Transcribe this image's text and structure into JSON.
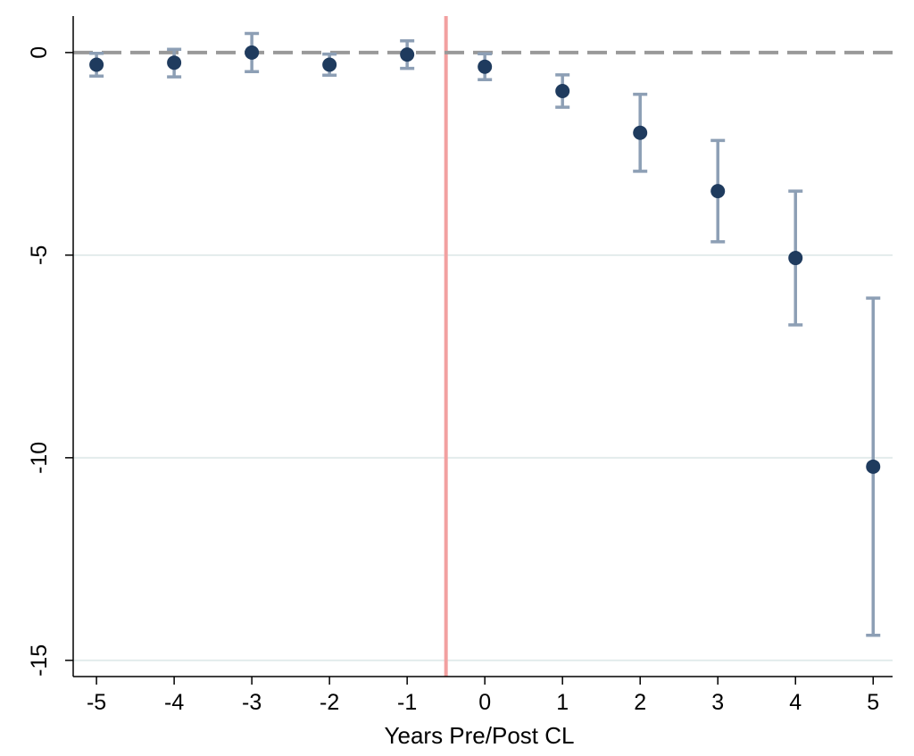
{
  "chart_data": {
    "type": "scatter",
    "title": "",
    "xlabel": "Years Pre/Post CL",
    "ylabel": "",
    "xlim": [
      -5.3,
      5.25
    ],
    "ylim": [
      -15.4,
      0.9
    ],
    "x_ticks": [
      -5,
      -4,
      -3,
      -2,
      -1,
      0,
      1,
      2,
      3,
      4,
      5
    ],
    "y_ticks": [
      0,
      -5,
      -10,
      -15
    ],
    "grid": true,
    "reference_lines": {
      "horizontal_dashed_y": 0,
      "vertical_x": -0.5
    },
    "series": [
      {
        "x": [
          -5,
          -4,
          -3,
          -2,
          -1,
          0,
          1,
          2,
          3,
          4,
          5
        ],
        "y": [
          -0.3,
          -0.25,
          0.0,
          -0.3,
          -0.05,
          -0.35,
          -0.95,
          -1.98,
          -3.42,
          -5.07,
          -10.22
        ],
        "ci_low": [
          -0.58,
          -0.6,
          -0.47,
          -0.56,
          -0.39,
          -0.67,
          -1.35,
          -2.93,
          -4.67,
          -6.72,
          -14.38
        ],
        "ci_high": [
          -0.02,
          0.08,
          0.47,
          -0.04,
          0.29,
          -0.03,
          -0.55,
          -1.03,
          -2.17,
          -3.42,
          -6.06
        ]
      }
    ],
    "colors": {
      "marker": "#1f3b5e",
      "error_bar": "#8d9fb5",
      "zero_line": "#999999",
      "vertical_line": "#f2a0a0",
      "grid": "#e3ecec"
    }
  }
}
